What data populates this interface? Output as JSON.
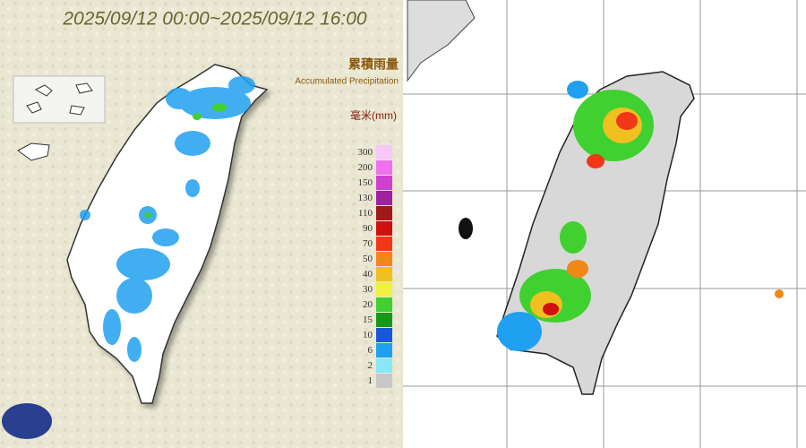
{
  "left_panel": {
    "title": "2025/09/12 00:00~2025/09/12 16:00",
    "legend_title_zh": "累積雨量",
    "legend_title_en": "Accumulated Precipitation",
    "unit": "毫米(mm)",
    "legend": [
      {
        "label": "300",
        "color": "#f8c8f8"
      },
      {
        "label": "200",
        "color": "#f070f0"
      },
      {
        "label": "150",
        "color": "#d040d0"
      },
      {
        "label": "130",
        "color": "#a020a0"
      },
      {
        "label": "110",
        "color": "#a01818"
      },
      {
        "label": "90",
        "color": "#d01010"
      },
      {
        "label": "70",
        "color": "#f03818"
      },
      {
        "label": "50",
        "color": "#f08818"
      },
      {
        "label": "40",
        "color": "#f0c020"
      },
      {
        "label": "30",
        "color": "#f0f040"
      },
      {
        "label": "20",
        "color": "#40d030"
      },
      {
        "label": "15",
        "color": "#189818"
      },
      {
        "label": "10",
        "color": "#1858d8"
      },
      {
        "label": "6",
        "color": "#20a0f0"
      },
      {
        "label": "2",
        "color": "#88e8f8"
      },
      {
        "label": "1",
        "color": "#c8c8c8"
      }
    ]
  }
}
